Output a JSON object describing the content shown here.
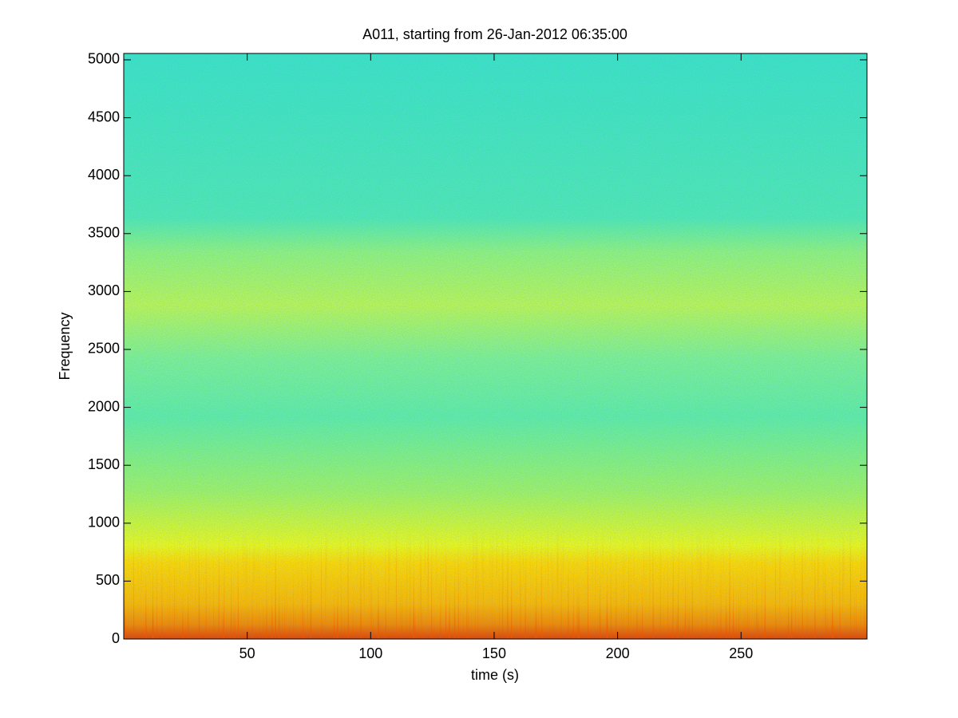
{
  "chart_data": {
    "type": "spectrogram",
    "title": "A011, starting from 26-Jan-2012 06:35:00",
    "x_label": "time (s)",
    "y_label": "Frequency",
    "xlim": [
      0,
      301
    ],
    "xticks": [
      50,
      100,
      150,
      200,
      250
    ],
    "ylim": [
      0,
      5055
    ],
    "yticks": [
      0,
      500,
      1000,
      1500,
      2000,
      2500,
      3000,
      3500,
      4000,
      4500,
      5000
    ]
  }
}
